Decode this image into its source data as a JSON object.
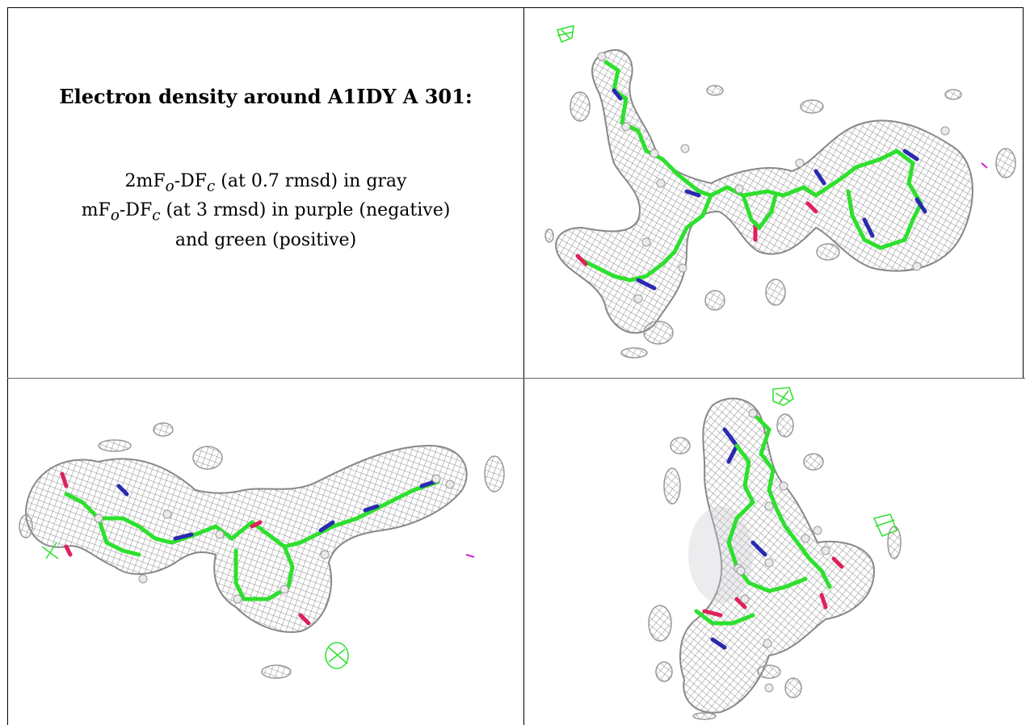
{
  "caption": {
    "title": "Electron density around A1IDY A 301:",
    "line1_prefix": "2mF",
    "line1_sub_o": "o",
    "line1_mid": "-DF",
    "line1_sub_c": "c",
    "line1_suffix": " (at 0.7 rmsd) in gray",
    "line2_prefix": "mF",
    "line2_sub_o": "o",
    "line2_mid": "-DF",
    "line2_sub_c": "c",
    "line2_suffix": " (at 3 rmsd) in purple (negative)",
    "line3": "and green (positive)"
  },
  "colors": {
    "mesh_gray": "#8a8a8a",
    "carbon_green": "#2ee02e",
    "nitrogen_blue": "#2a2ab0",
    "oxygen_red": "#e0205a",
    "hydrogen_white": "#e8e8e8",
    "negative_purple": "#d020d0"
  },
  "panels": [
    {
      "name": "view-top-right"
    },
    {
      "name": "view-bottom-left"
    },
    {
      "name": "view-bottom-right"
    }
  ]
}
